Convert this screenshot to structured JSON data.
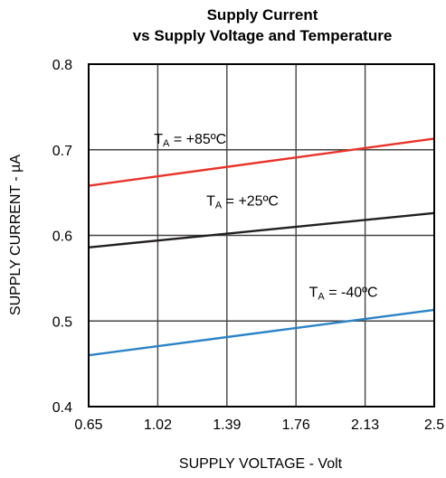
{
  "chart_data": {
    "type": "line",
    "title_lines": [
      "Supply Current",
      "vs Supply Voltage and Temperature"
    ],
    "xlabel": "SUPPLY VOLTAGE - Volt",
    "ylabel": "SUPPLY CURRENT - µA",
    "x_tick_labels": [
      "0.65",
      "1.02",
      "1.39",
      "1.76",
      "2.13",
      "2.5"
    ],
    "y_tick_labels": [
      "0.4",
      "0.5",
      "0.6",
      "0.7",
      "0.8"
    ],
    "x_ticks": [
      0.65,
      1.02,
      1.39,
      1.76,
      2.13,
      2.5
    ],
    "y_ticks": [
      0.4,
      0.5,
      0.6,
      0.7,
      0.8
    ],
    "xlim": [
      0.65,
      2.5
    ],
    "ylim": [
      0.4,
      0.8
    ],
    "grid": true,
    "series": [
      {
        "label_main": "T",
        "label_sub": "A",
        "label_rest": " = +85ºC",
        "color": "#e8332a",
        "x": [
          0.65,
          2.5
        ],
        "y": [
          0.658,
          0.713
        ],
        "label_x": 1.0,
        "label_y": 0.707
      },
      {
        "label_main": "T",
        "label_sub": "A",
        "label_rest": " = +25ºC",
        "color": "#231f20",
        "x": [
          0.65,
          2.5
        ],
        "y": [
          0.586,
          0.626
        ],
        "label_x": 1.28,
        "label_y": 0.635
      },
      {
        "label_main": "T",
        "label_sub": "A",
        "label_rest": " = -40ºC",
        "color": "#2b83c6",
        "x": [
          0.65,
          2.5
        ],
        "y": [
          0.46,
          0.513
        ],
        "label_x": 1.83,
        "label_y": 0.528
      }
    ]
  }
}
